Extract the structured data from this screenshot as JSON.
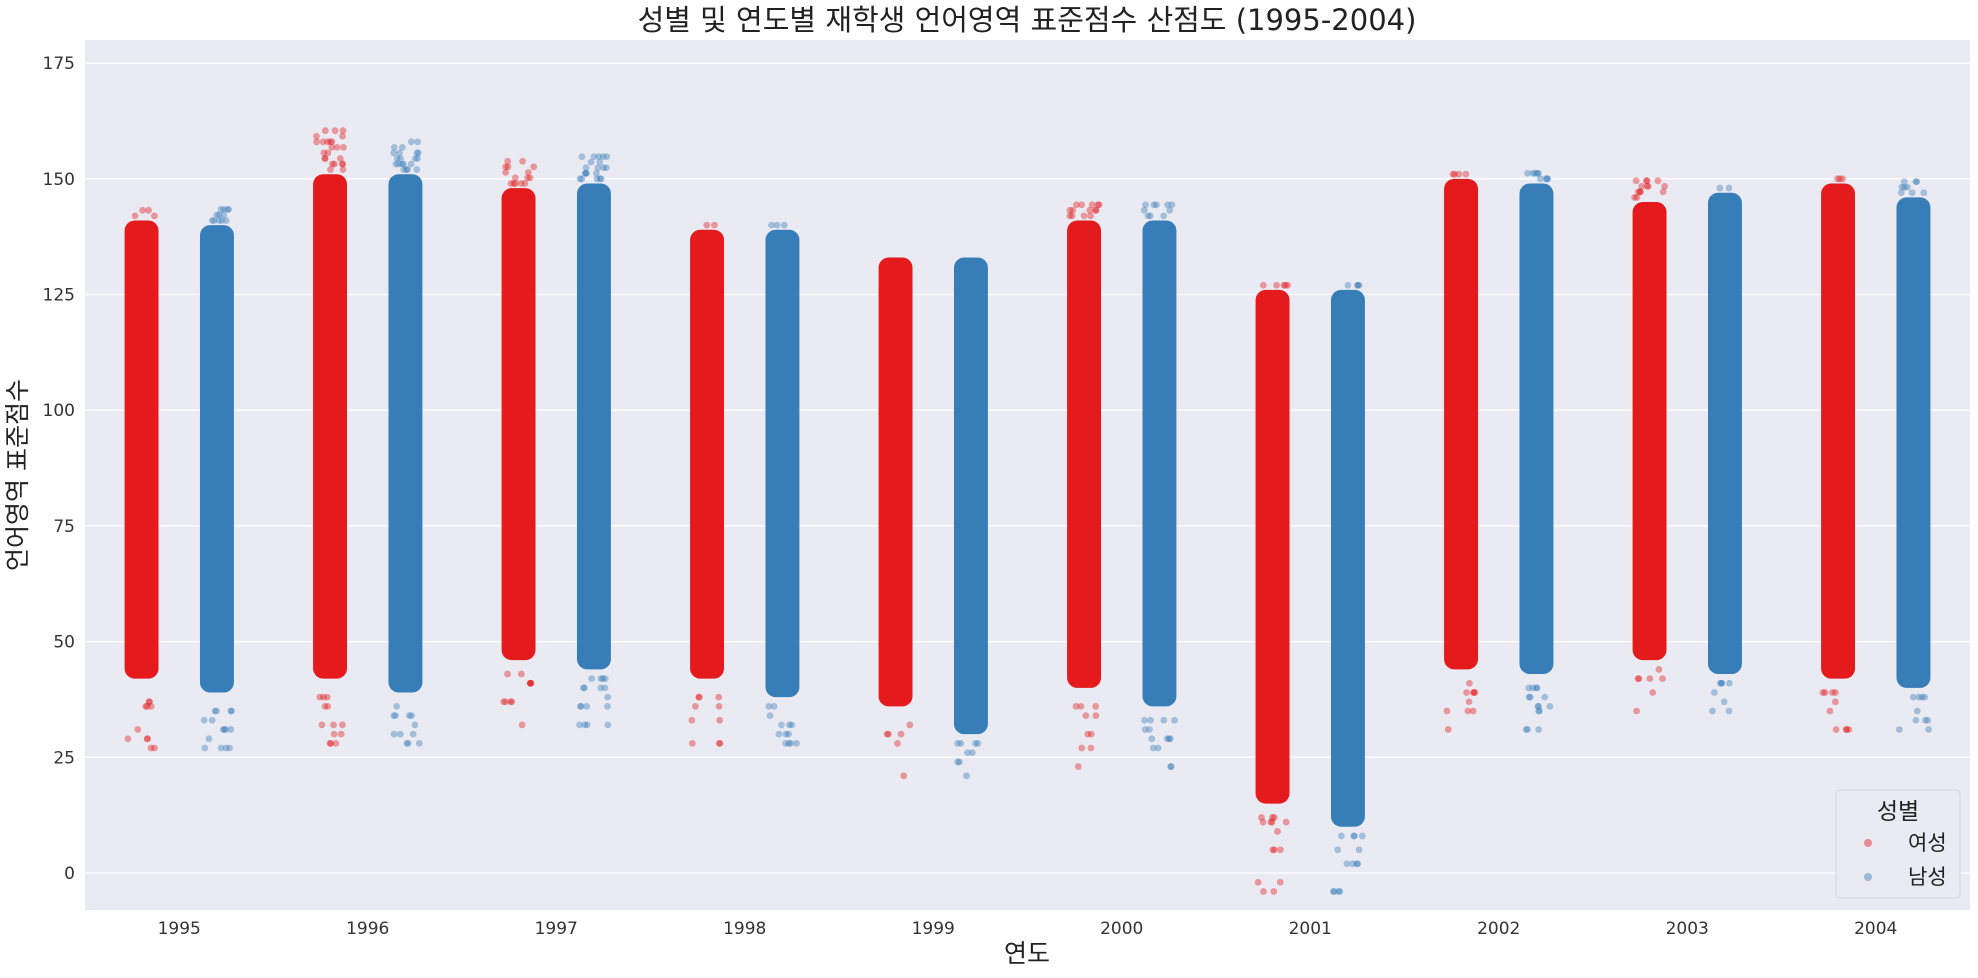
{
  "chart_data": {
    "type": "scatter",
    "title": "성별 및 연도별 재학생 언어영역 표준점수 산점도 (1995-2004)",
    "xlabel": "연도",
    "ylabel": "언어영역 표준점수",
    "categories": [
      "1995",
      "1996",
      "1997",
      "1998",
      "1999",
      "2000",
      "2001",
      "2002",
      "2003",
      "2004"
    ],
    "ylim": [
      -8,
      180
    ],
    "yticks": [
      0,
      25,
      50,
      75,
      100,
      125,
      150,
      175
    ],
    "grid": true,
    "background": "#eaeaf2",
    "legend": {
      "title": "성별",
      "placement": "bottom-right",
      "entries": [
        "여성",
        "남성"
      ]
    },
    "series": [
      {
        "name": "여성",
        "color": "#e41a1c",
        "ranges": [
          {
            "category": "1995",
            "dense_min": 42,
            "dense_max": 141,
            "max": 144,
            "outliers": [
              37,
              36,
              31,
              29,
              27
            ]
          },
          {
            "category": "1996",
            "dense_min": 42,
            "dense_max": 151,
            "max": 161,
            "outliers": [
              38,
              36,
              32,
              30,
              28
            ]
          },
          {
            "category": "1997",
            "dense_min": 46,
            "dense_max": 148,
            "max": 154,
            "outliers": [
              43,
              41,
              37,
              32
            ]
          },
          {
            "category": "1998",
            "dense_min": 42,
            "dense_max": 139,
            "max": 140,
            "outliers": [
              38,
              36,
              33,
              28
            ]
          },
          {
            "category": "1999",
            "dense_min": 36,
            "dense_max": 133,
            "max": 133,
            "outliers": [
              32,
              30,
              28,
              21
            ]
          },
          {
            "category": "2000",
            "dense_min": 40,
            "dense_max": 141,
            "max": 145,
            "outliers": [
              36,
              34,
              30,
              27,
              23
            ]
          },
          {
            "category": "2001",
            "dense_min": 15,
            "dense_max": 126,
            "max": 127,
            "outliers": [
              12,
              11,
              9,
              5,
              -2,
              -4
            ]
          },
          {
            "category": "2002",
            "dense_min": 44,
            "dense_max": 150,
            "max": 152,
            "outliers": [
              41,
              39,
              37,
              35,
              31
            ]
          },
          {
            "category": "2003",
            "dense_min": 46,
            "dense_max": 145,
            "max": 150,
            "outliers": [
              44,
              42,
              39,
              35
            ]
          },
          {
            "category": "2004",
            "dense_min": 42,
            "dense_max": 149,
            "max": 151,
            "outliers": [
              39,
              37,
              35,
              31
            ]
          }
        ]
      },
      {
        "name": "남성",
        "color": "#377eb8",
        "ranges": [
          {
            "category": "1995",
            "dense_min": 39,
            "dense_max": 140,
            "max": 144,
            "outliers": [
              35,
              33,
              31,
              29,
              27
            ]
          },
          {
            "category": "1996",
            "dense_min": 39,
            "dense_max": 151,
            "max": 158,
            "outliers": [
              36,
              34,
              32,
              30,
              28
            ]
          },
          {
            "category": "1997",
            "dense_min": 44,
            "dense_max": 149,
            "max": 155,
            "outliers": [
              42,
              40,
              38,
              36,
              32
            ]
          },
          {
            "category": "1998",
            "dense_min": 38,
            "dense_max": 139,
            "max": 140,
            "outliers": [
              36,
              34,
              32,
              30,
              28
            ]
          },
          {
            "category": "1999",
            "dense_min": 30,
            "dense_max": 133,
            "max": 133,
            "outliers": [
              28,
              26,
              24,
              21
            ]
          },
          {
            "category": "2000",
            "dense_min": 36,
            "dense_max": 141,
            "max": 145,
            "outliers": [
              33,
              31,
              29,
              27,
              23
            ]
          },
          {
            "category": "2001",
            "dense_min": 10,
            "dense_max": 126,
            "max": 127,
            "outliers": [
              8,
              5,
              2,
              -4
            ]
          },
          {
            "category": "2002",
            "dense_min": 43,
            "dense_max": 149,
            "max": 152,
            "outliers": [
              40,
              38,
              36,
              35,
              31
            ]
          },
          {
            "category": "2003",
            "dense_min": 43,
            "dense_max": 147,
            "max": 148,
            "outliers": [
              41,
              39,
              37,
              35
            ]
          },
          {
            "category": "2004",
            "dense_min": 40,
            "dense_max": 146,
            "max": 150,
            "outliers": [
              38,
              35,
              33,
              31
            ]
          }
        ]
      }
    ]
  }
}
